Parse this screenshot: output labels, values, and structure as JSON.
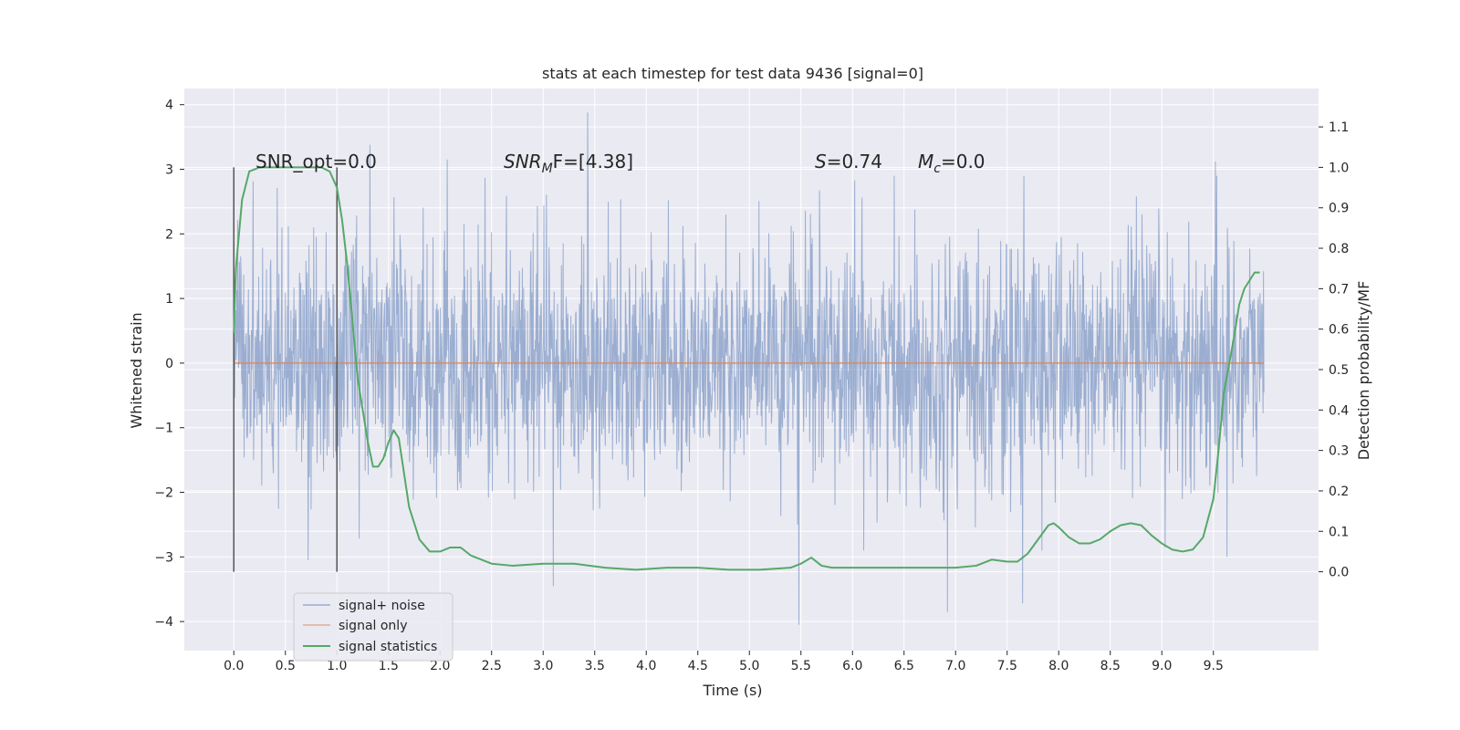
{
  "chart_data": {
    "type": "line",
    "title": "stats at each timestep for test data 9436 [signal=0]",
    "xlabel": "Time (s)",
    "ylabel": "Whitened strain",
    "y2label": "Detection probability/MF",
    "xlim": [
      -0.48,
      10.52
    ],
    "ylim": [
      -4.45,
      4.25
    ],
    "y2lim": [
      -0.195,
      1.195
    ],
    "x_ticks": [
      "0.0",
      "0.5",
      "1.0",
      "1.5",
      "2.0",
      "2.5",
      "3.0",
      "3.5",
      "4.0",
      "4.5",
      "5.0",
      "5.5",
      "6.0",
      "6.5",
      "7.0",
      "7.5",
      "8.0",
      "8.5",
      "9.0",
      "9.5"
    ],
    "y_ticks": [
      "4",
      "3",
      "2",
      "1",
      "0",
      "−1",
      "−2",
      "−3",
      "−4"
    ],
    "y2_ticks": [
      "1.1",
      "1.0",
      "0.9",
      "0.8",
      "0.7",
      "0.6",
      "0.5",
      "0.4",
      "0.3",
      "0.2",
      "0.1",
      "0.0"
    ],
    "grid": true,
    "legend_placement": "lower-left",
    "annotations": [
      {
        "prefix": "SNR_opt=0.0",
        "sub": "",
        "suffix": ""
      },
      {
        "prefix": "SNR",
        "sub": "M",
        "suffix": "F=[4.38]"
      },
      {
        "prefix": "S",
        "sub": "",
        "suffix": "=0.74"
      },
      {
        "prefix": "M",
        "sub": "c",
        "suffix": "=0.0"
      }
    ],
    "vlines_x": [
      0.0,
      1.0
    ],
    "series": [
      {
        "name": "signal+ noise",
        "color": "#4c72b0",
        "x_range": [
          0.0,
          9.99
        ],
        "amplitude_envelope": [
          -4.05,
          3.88
        ],
        "peaks": [
          {
            "x": 3.43,
            "y": 3.88
          },
          {
            "x": 5.48,
            "y": -4.05
          },
          {
            "x": 6.92,
            "y": -3.85
          },
          {
            "x": 3.1,
            "y": -3.45
          },
          {
            "x": 1.32,
            "y": 3.38
          },
          {
            "x": 7.65,
            "y": -3.72
          },
          {
            "x": 9.52,
            "y": 3.12
          },
          {
            "x": 9.63,
            "y": -3.0
          },
          {
            "x": 0.72,
            "y": -3.05
          },
          {
            "x": 2.07,
            "y": 3.15
          }
        ]
      },
      {
        "name": "signal only",
        "color": "#dd8452",
        "x": [
          0.0,
          9.99
        ],
        "y": [
          0.0,
          0.0
        ]
      },
      {
        "name": "signal statistics",
        "color": "#55a868",
        "axis": "right",
        "x": [
          0.0,
          0.02,
          0.08,
          0.15,
          0.25,
          0.4,
          0.55,
          0.7,
          0.85,
          0.93,
          1.0,
          1.05,
          1.1,
          1.2,
          1.3,
          1.35,
          1.4,
          1.45,
          1.5,
          1.55,
          1.6,
          1.7,
          1.8,
          1.9,
          2.0,
          2.1,
          2.2,
          2.3,
          2.5,
          2.7,
          3.0,
          3.3,
          3.6,
          3.9,
          4.2,
          4.5,
          4.8,
          5.1,
          5.4,
          5.5,
          5.6,
          5.7,
          5.8,
          6.0,
          6.2,
          6.5,
          6.8,
          7.0,
          7.2,
          7.35,
          7.5,
          7.6,
          7.7,
          7.8,
          7.9,
          7.95,
          8.0,
          8.1,
          8.2,
          8.3,
          8.4,
          8.5,
          8.6,
          8.7,
          8.8,
          8.9,
          9.0,
          9.1,
          9.2,
          9.3,
          9.4,
          9.5,
          9.55,
          9.6,
          9.7,
          9.75,
          9.8,
          9.85,
          9.9,
          9.95
        ],
        "y": [
          0.59,
          0.75,
          0.92,
          0.99,
          1.0,
          1.0,
          1.0,
          1.0,
          1.0,
          0.99,
          0.95,
          0.87,
          0.76,
          0.48,
          0.32,
          0.26,
          0.26,
          0.28,
          0.32,
          0.35,
          0.33,
          0.16,
          0.08,
          0.05,
          0.05,
          0.06,
          0.06,
          0.04,
          0.02,
          0.015,
          0.02,
          0.02,
          0.01,
          0.005,
          0.01,
          0.01,
          0.005,
          0.005,
          0.01,
          0.02,
          0.035,
          0.015,
          0.01,
          0.01,
          0.01,
          0.01,
          0.01,
          0.01,
          0.015,
          0.03,
          0.025,
          0.025,
          0.045,
          0.08,
          0.115,
          0.12,
          0.11,
          0.085,
          0.07,
          0.07,
          0.08,
          0.1,
          0.115,
          0.12,
          0.115,
          0.09,
          0.07,
          0.055,
          0.05,
          0.055,
          0.085,
          0.18,
          0.3,
          0.44,
          0.58,
          0.66,
          0.7,
          0.72,
          0.74,
          0.74
        ]
      }
    ]
  }
}
